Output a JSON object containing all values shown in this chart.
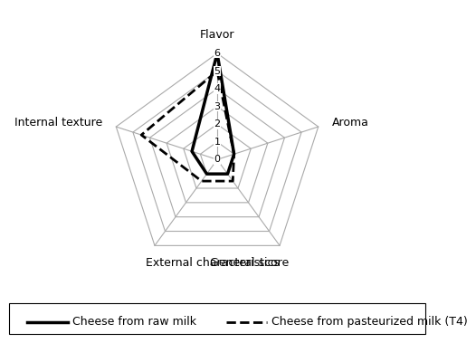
{
  "categories": [
    "Flavor",
    "Aroma",
    "General score",
    "External characteristics",
    "Internal texture"
  ],
  "raw_milk": [
    6.0,
    1.0,
    1.0,
    1.0,
    1.5
  ],
  "pasteurized_milk": [
    5.0,
    1.0,
    1.5,
    1.5,
    4.5
  ],
  "rmax": 6,
  "rticks": [
    0,
    1,
    2,
    3,
    4,
    5,
    6
  ],
  "raw_milk_label": "Cheese from raw milk",
  "pasteurized_milk_label": "Cheese from pasteurized milk (T4)",
  "raw_milk_color": "#000000",
  "pasteurized_milk_color": "#000000",
  "grid_color": "#aaaaaa",
  "background_color": "#ffffff",
  "label_fontsize": 9,
  "tick_fontsize": 8,
  "legend_fontsize": 9,
  "raw_milk_linewidth": 2.5,
  "pasteurized_milk_linewidth": 2.0
}
